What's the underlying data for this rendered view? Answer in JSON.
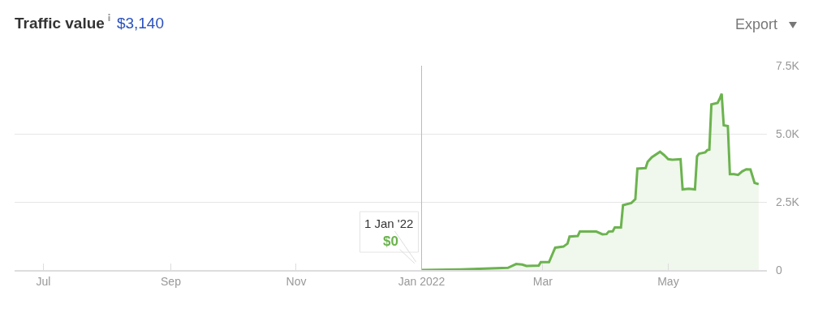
{
  "chart_data": {
    "type": "area",
    "title": "Traffic value",
    "subtitle": "$3,140",
    "x": [
      "2022-01-01",
      "2022-01-20",
      "2022-02-12",
      "2022-02-16",
      "2022-02-19",
      "2022-02-21",
      "2022-02-27",
      "2022-02-28",
      "2022-03-04",
      "2022-03-07",
      "2022-03-11",
      "2022-03-13",
      "2022-03-14",
      "2022-03-18",
      "2022-03-19",
      "2022-03-27",
      "2022-03-30",
      "2022-04-01",
      "2022-04-02",
      "2022-04-04",
      "2022-04-05",
      "2022-04-08",
      "2022-04-09",
      "2022-04-13",
      "2022-04-15",
      "2022-04-16",
      "2022-04-20",
      "2022-04-21",
      "2022-04-23",
      "2022-04-27",
      "2022-04-29",
      "2022-05-01",
      "2022-05-03",
      "2022-05-07",
      "2022-05-08",
      "2022-05-11",
      "2022-05-14",
      "2022-05-15",
      "2022-05-16",
      "2022-05-19",
      "2022-05-20",
      "2022-05-21",
      "2022-05-22",
      "2022-05-25",
      "2022-05-26",
      "2022-05-27",
      "2022-05-28",
      "2022-05-30",
      "2022-05-31",
      "2022-06-02",
      "2022-06-04",
      "2022-06-06",
      "2022-06-08",
      "2022-06-10",
      "2022-06-12",
      "2022-06-14"
    ],
    "series": [
      {
        "color": "#6cb34f",
        "values": [
          0,
          20,
          80,
          220,
          200,
          150,
          160,
          290,
          290,
          820,
          860,
          970,
          1230,
          1250,
          1410,
          1410,
          1310,
          1320,
          1410,
          1420,
          1560,
          1560,
          2380,
          2460,
          2600,
          3720,
          3740,
          3970,
          4140,
          4340,
          4220,
          4070,
          4050,
          4070,
          2960,
          2980,
          2960,
          4170,
          4270,
          4320,
          4400,
          4420,
          6080,
          6130,
          6280,
          6470,
          5310,
          5280,
          3520,
          3520,
          3490,
          3620,
          3700,
          3690,
          3200,
          3150
        ]
      }
    ],
    "xlim": [
      "2021-06-17",
      "2022-06-18"
    ],
    "xticks": [
      {
        "value": "2021-07-01",
        "label": "Jul"
      },
      {
        "value": "2021-09-01",
        "label": "Sep"
      },
      {
        "value": "2021-11-01",
        "label": "Nov"
      },
      {
        "value": "2022-01-01",
        "label": "Jan 2022"
      },
      {
        "value": "2022-03-01",
        "label": "Mar"
      },
      {
        "value": "2022-05-01",
        "label": "May"
      }
    ],
    "ylim": [
      0,
      7500
    ],
    "yticks": [
      0,
      {
        "value": 2500,
        "label": "2.5K"
      },
      {
        "value": 5000,
        "label": "5.0K"
      },
      {
        "value": 7500,
        "label": "7.5K"
      }
    ],
    "ref_lines": [
      {
        "axis": "x",
        "value": "2022-01-01",
        "color": "#bbbbbb"
      }
    ],
    "annotations": [
      "Export",
      {
        "text": "1 Jan '22",
        "x": "2022-01-01",
        "y": 0
      },
      {
        "text": "$0",
        "x": "2022-01-01",
        "y": 0
      }
    ],
    "grid": "y",
    "legend": false,
    "marker": "none",
    "line_style": "solid"
  }
}
